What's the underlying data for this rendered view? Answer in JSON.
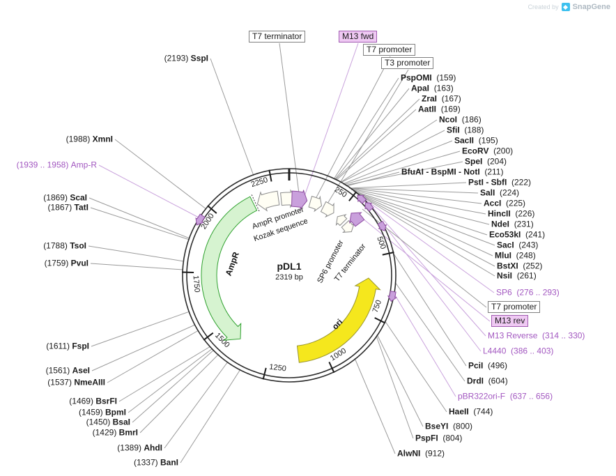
{
  "branding": {
    "created_by": "Created by",
    "brand": "SnapGene"
  },
  "plasmid": {
    "name": "pDL1",
    "size": "2319 bp"
  },
  "ticks": [
    "250",
    "500",
    "750",
    "1000",
    "1250",
    "1500",
    "1750",
    "2000",
    "2250"
  ],
  "features": {
    "ampr": "AmpR",
    "ampr_promoter": "AmpR promoter",
    "kozak": "Kozak sequence",
    "ori": "ori",
    "sp6_promoter": "SP6 promoter",
    "t7_terminator": "T7 terminator"
  },
  "boxes": [
    {
      "text": "T7 terminator"
    },
    {
      "text": "M13 fwd"
    },
    {
      "text": "T7 promoter"
    },
    {
      "text": "T3 promoter"
    },
    {
      "text": "T7 promoter"
    },
    {
      "text": "M13 rev"
    }
  ],
  "colors": {
    "cds_green_fill": "#d6f3d0",
    "cds_green_stroke": "#2fa12f",
    "ori_yellow_fill": "#f5e71d",
    "ori_yellow_stroke": "#97932c",
    "primer_fill": "#c9a0dc",
    "primer_stroke": "#8d4ba0",
    "misc_fill": "#fffef4",
    "misc_stroke": "#8a8a8a",
    "primer_text": "#a257c0",
    "line_gray": "#9a9a9a",
    "line_purple": "#c9a2dc"
  },
  "site_labels": [
    {
      "pos": "(2193)",
      "name": "SspI",
      "side": "left",
      "type": "enzyme"
    },
    {
      "pos": "(1988)",
      "name": "XmnI",
      "side": "left",
      "type": "enzyme"
    },
    {
      "pos": "(1939 .. 1958)",
      "name": "Amp-R",
      "side": "left",
      "type": "primer"
    },
    {
      "pos": "(1869)",
      "name": "ScaI",
      "side": "left",
      "type": "enzyme"
    },
    {
      "pos": "(1867)",
      "name": "TatI",
      "side": "left",
      "type": "enzyme"
    },
    {
      "pos": "(1788)",
      "name": "TsoI",
      "side": "left",
      "type": "enzyme"
    },
    {
      "pos": "(1759)",
      "name": "PvuI",
      "side": "left",
      "type": "enzyme"
    },
    {
      "pos": "(1611)",
      "name": "FspI",
      "side": "left",
      "type": "enzyme"
    },
    {
      "pos": "(1561)",
      "name": "AseI",
      "side": "left",
      "type": "enzyme"
    },
    {
      "pos": "(1537)",
      "name": "NmeAIII",
      "side": "left",
      "type": "enzyme"
    },
    {
      "pos": "(1469)",
      "name": "BsrFI",
      "side": "left",
      "type": "enzyme"
    },
    {
      "pos": "(1459)",
      "name": "BpmI",
      "side": "left",
      "type": "enzyme"
    },
    {
      "pos": "(1450)",
      "name": "BsaI",
      "side": "left",
      "type": "enzyme"
    },
    {
      "pos": "(1429)",
      "name": "BmrI",
      "side": "left",
      "type": "enzyme"
    },
    {
      "pos": "(1389)",
      "name": "AhdI",
      "side": "left",
      "type": "enzyme"
    },
    {
      "pos": "(1337)",
      "name": "BanI",
      "side": "left",
      "type": "enzyme"
    },
    {
      "name": "PspOMI",
      "pos": "(159)",
      "side": "right",
      "type": "enzyme"
    },
    {
      "name": "ApaI",
      "pos": "(163)",
      "side": "right",
      "type": "enzyme"
    },
    {
      "name": "ZraI",
      "pos": "(167)",
      "side": "right",
      "type": "enzyme"
    },
    {
      "name": "AatII",
      "pos": "(169)",
      "side": "right",
      "type": "enzyme"
    },
    {
      "name": "NcoI",
      "pos": "(186)",
      "side": "right",
      "type": "enzyme"
    },
    {
      "name": "SfiI",
      "pos": "(188)",
      "side": "right",
      "type": "enzyme"
    },
    {
      "name": "SacII",
      "pos": "(195)",
      "side": "right",
      "type": "enzyme"
    },
    {
      "name": "EcoRV",
      "pos": "(200)",
      "side": "right",
      "type": "enzyme"
    },
    {
      "name": "SpeI",
      "pos": "(204)",
      "side": "right",
      "type": "enzyme"
    },
    {
      "name": "BfuAI - BspMI - NotI",
      "pos": "(211)",
      "side": "right",
      "type": "enzyme"
    },
    {
      "name": "PstI - SbfI",
      "pos": "(222)",
      "side": "right",
      "type": "enzyme"
    },
    {
      "name": "SalI",
      "pos": "(224)",
      "side": "right",
      "type": "enzyme"
    },
    {
      "name": "AccI",
      "pos": "(225)",
      "side": "right",
      "type": "enzyme"
    },
    {
      "name": "HincII",
      "pos": "(226)",
      "side": "right",
      "type": "enzyme"
    },
    {
      "name": "NdeI",
      "pos": "(231)",
      "side": "right",
      "type": "enzyme"
    },
    {
      "name": "Eco53kI",
      "pos": "(241)",
      "side": "right",
      "type": "enzyme"
    },
    {
      "name": "SacI",
      "pos": "(243)",
      "side": "right",
      "type": "enzyme"
    },
    {
      "name": "MluI",
      "pos": "(248)",
      "side": "right",
      "type": "enzyme"
    },
    {
      "name": "BstXI",
      "pos": "(252)",
      "side": "right",
      "type": "enzyme"
    },
    {
      "name": "NsiI",
      "pos": "(261)",
      "side": "right",
      "type": "enzyme"
    },
    {
      "name": "SP6",
      "pos": "(276 .. 293)",
      "side": "right",
      "type": "primer"
    },
    {
      "name": "M13 Reverse",
      "pos": "(314 .. 330)",
      "side": "right",
      "type": "primer"
    },
    {
      "name": "L4440",
      "pos": "(386 .. 403)",
      "side": "right",
      "type": "primer"
    },
    {
      "name": "PciI",
      "pos": "(496)",
      "side": "right",
      "type": "enzyme"
    },
    {
      "name": "DrdI",
      "pos": "(604)",
      "side": "right",
      "type": "enzyme"
    },
    {
      "name": "pBR322ori-F",
      "pos": "(637 .. 656)",
      "side": "right",
      "type": "primer"
    },
    {
      "name": "HaeII",
      "pos": "(744)",
      "side": "right",
      "type": "enzyme"
    },
    {
      "name": "BseYI",
      "pos": "(800)",
      "side": "right",
      "type": "enzyme"
    },
    {
      "name": "PspFI",
      "pos": "(804)",
      "side": "right",
      "type": "enzyme"
    },
    {
      "name": "AlwNI",
      "pos": "(912)",
      "side": "right",
      "type": "enzyme"
    }
  ]
}
